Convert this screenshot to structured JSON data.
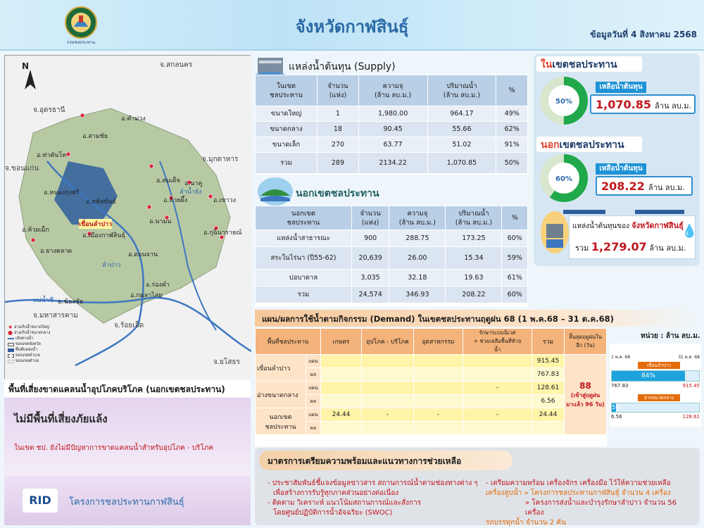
{
  "header": {
    "title": "จังหวัดกาฬสินธุ์",
    "date": "ข้อมูลวันที่ 4 สิงหาคม 2568",
    "logo_text": "กรมชลประทาน"
  },
  "map": {
    "north": "N",
    "labels": {
      "sakon": "จ.สกลนคร",
      "udon": "จ.อุดรธานี",
      "khamuang": "อ.คำม่วง",
      "thakhanto": "อ.ท่าคันโท",
      "samchai": "อ.สามชัย",
      "khonkaen": "จ.ขอนแก่น",
      "mukdahan": "จ.มุกดาหาร",
      "somdet": "อ.สมเด็จ",
      "nongkungsri": "อ.หนองกุงศรี",
      "naku": "อ.นาคู",
      "huaiphueng": "อ.ห้วยผึ้ง",
      "saharatsakhon": "อ.สหัสขันธ์",
      "khaowong": "อ.เขาวง",
      "namon": "อ.นามน",
      "huaimek": "อ.ห้วยเม็ก",
      "lampao": "เขื่อนลำปาว",
      "muang": "อ.เมืองกาฬสินธุ์",
      "kuchinarai": "อ.กุฉินารายณ์",
      "yangtalat": "อ.ยางตลาด",
      "donchan": "อ.ดอนจาน",
      "rongkham": "อ.ร่องคำ",
      "kamalasai": "อ.กมลาไสย",
      "khongchai": "อ.ฆ้องชัย",
      "mahasarakham": "จ.มหาสารคาม",
      "roiet": "จ.ร้อยเอ็ด",
      "yasothon": "จ.ยโสธร",
      "river_chi": "แม่น้ำชี",
      "river_pao": "ลำปาว",
      "river_yang": "ลำน้ำยัง"
    },
    "legend": [
      "อ่างเก็บน้ำขนาดใหญ่",
      "อ่างเก็บน้ำขนาดกลาง",
      "เส้นทางน้ำ",
      "ขอบเขตจังหวัด",
      "พื้นที่แหล่งน้ำ",
      "ขอบเขตอำเภอ",
      "ขอบเขตตำบล"
    ]
  },
  "risk": {
    "title": "พื้นที่เสี่ยงขาดแคลนน้ำอุปโภคบริโภค (นอกเขตชลประทาน)",
    "status": "ไม่มีพื้นที่เสี่ยงภัยแล้ง",
    "note": "ในเขต ชป. ยังไม่มีปัญหาการขาดแคลนน้ำสำหรับอุปโภค - บริโภค"
  },
  "footer": {
    "rid": "RID",
    "org": "โครงการชลประทานกาฬสินธุ์"
  },
  "supply": {
    "title": "แหล่งน้ำต้นทุน (Supply)",
    "headers": [
      "ในเขต\nชลประทาน",
      "จำนวน\n(แห่ง)",
      "ความจุ\n(ล้าน ลบ.ม.)",
      "ปริมาณน้ำ\n(ล้าน ลบ.ม.)",
      "%"
    ],
    "rows": [
      [
        "ขนาดใหญ่",
        "1",
        "1,980.00",
        "964.17",
        "49%"
      ],
      [
        "ขนาดกลาง",
        "18",
        "90.45",
        "55.66",
        "62%"
      ],
      [
        "ขนาดเล็ก",
        "270",
        "63.77",
        "51.02",
        "91%"
      ],
      [
        "รวม",
        "289",
        "2134.22",
        "1,070.85",
        "50%"
      ]
    ]
  },
  "outside": {
    "title": "นอกเขตชลประทาน",
    "headers": [
      "นอกเขต\nชลประทาน",
      "จำนวน\n(แห่ง)",
      "ความจุ\n(ล้าน ลบ.ม.)",
      "ปริมาณน้ำ\n(ล้าน ลบ.ม.)",
      "%"
    ],
    "rows": [
      [
        "แหล่งน้ำสาธารณะ",
        "900",
        "288.75",
        "173.25",
        "60%"
      ],
      [
        "สระในไร่นา (ปี55-62)",
        "20,639",
        "26.00",
        "15.34",
        "59%"
      ],
      [
        "บ่อบาดาล",
        "3,035",
        "32.18",
        "19.63",
        "61%"
      ],
      [
        "รวม",
        "24,574",
        "346.93",
        "208.22",
        "60%"
      ]
    ]
  },
  "right": {
    "in_title_red": "ใน",
    "in_title_rest": "เขตชลประทาน",
    "in_pct": "50%",
    "in_pct_value": 50,
    "remain_label": "เหลือน้ำต้นทุน",
    "in_value": "1,070.85",
    "unit": "ล้าน ลบ.ม.",
    "out_title_red": "นอก",
    "out_title_rest": "เขตชลประทาน",
    "out_pct": "60%",
    "out_pct_value": 60,
    "out_value": "208.22",
    "total_label1": "แหล่งน้ำต้นทุนของ",
    "total_label2": "จังหวัดกาฬสินธุ์",
    "total_prefix": "รวม",
    "total_value": "1,279.07"
  },
  "demand": {
    "title": "แผน/ผลการใช้น้ำตามกิจกรรม (Demand) ในเขตชลประทานฤดูฝน 68 (1 พ.ค.68 – 31 ต.ค.68)",
    "unit_note": "หน่วย : ล้าน ลบ.ม.",
    "headers": [
      "พื้นที่ชลประทาน",
      "",
      "เกษตร",
      "อุปโภค - บริโภค",
      "อุตสาหกรรม",
      "รักษาระบบนิเวศ\n+ ช่วยเหลือพื้นที่ท้าย\nน้ำ",
      "รวม",
      "สิ้นสุดฤดูฝนใน\nอีก (วัน)"
    ],
    "rows": [
      {
        "name": "เขื่อนลำปาว",
        "type": "แผน",
        "vals": [
          "",
          "",
          "",
          "",
          "915.45"
        ]
      },
      {
        "name": "",
        "type": "ผล",
        "vals": [
          "",
          "",
          "",
          "",
          "767.83"
        ]
      },
      {
        "name": "อ่างขนาดกลาง",
        "type": "แผน",
        "vals": [
          "",
          "",
          "",
          "-",
          "128.61"
        ]
      },
      {
        "name": "",
        "type": "ผล",
        "vals": [
          "",
          "",
          "",
          "",
          "6.56"
        ]
      },
      {
        "name": "นอกเขต\nชลประทาน",
        "type": "แผน",
        "vals": [
          "24.44",
          "-",
          "-",
          "-",
          "24.44"
        ]
      },
      {
        "name": "",
        "type": "ผล",
        "vals": [
          "",
          "",
          "",
          "",
          ""
        ]
      }
    ],
    "days": "88",
    "days_note": "(เข้าสู่ฤดูฝน\nมาแล้ว 96 วัน)",
    "bars": {
      "start": "1 พ.ค. 68",
      "end": "31 ต.ค. 68",
      "b1_label": "เขื่อนลำปาว",
      "b1_pct": "84%",
      "b1_pct_value": 84,
      "b1_left": "767.83",
      "b1_right": "915.45",
      "b2_label": "อ่างขนาดกลาง",
      "b2_pct": "5%",
      "b2_pct_value": 5,
      "b2_left": "6.56",
      "b2_right": "128.61",
      "sub_unit": "ล้าน ลบ.ม."
    }
  },
  "measures": {
    "title": "มาตรการเตรียมความพร้อมและแนวทางการช่วยเหลือ",
    "left": [
      "- ประชาสัมพันธ์ชี้แจงข้อมูลข่าวสาร สถานการณ์น้ำตามช่องทางต่าง ๆ",
      "  เพื่อสร้างการรับรู้ทุกภาคส่วนอย่างต่อเนื่อง",
      "- ติดตาม วิเคราะห์ แนวโน้มสถานการณ์และสั่งการ",
      "  โดยศูนย์ปฏิบัติการน้ำอัจฉริยะ (SWOC)"
    ],
    "right": [
      "- เตรียมความพร้อม เครื่องจักร เครื่องมือ ไว้ให้ความช่วยเหลือ",
      "เครื่องสูบน้ำ » โครงการชลประทานกาฬสินธุ์ จำนวน 4 เครื่อง",
      "» โครงการส่งน้ำและบำรุงรักษาลำปาว จำนวน 56 เครื่อง",
      "รถบรรทุกน้ำ จำนวน 2 คัน"
    ]
  }
}
